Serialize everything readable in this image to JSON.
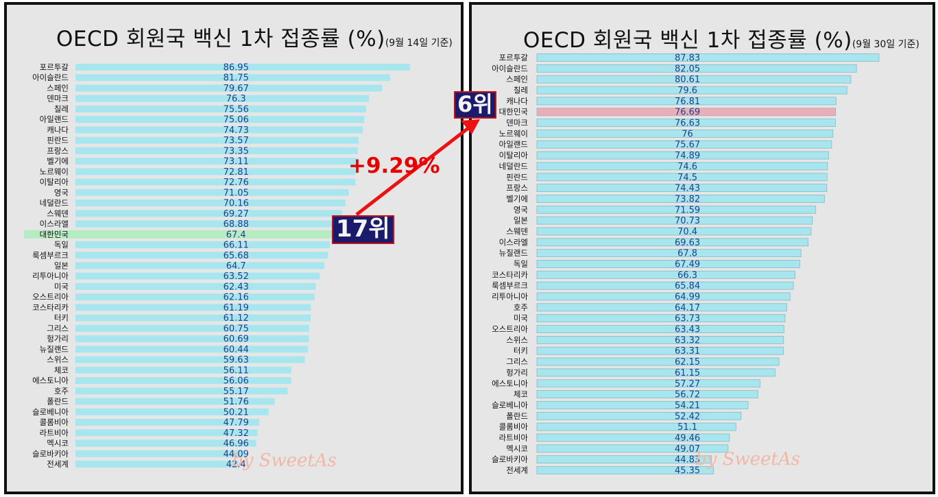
{
  "left_chart": {
    "title": "OECD 회원국 백신 1차 접종률 (%)",
    "subtitle": "(9월 14일 기준)",
    "watermark": "by SweetAs",
    "highlight_color": "#b6ecc1"
  },
  "right_chart": {
    "title": "OECD 회원국 백신 1차 접종률 (%)",
    "subtitle": "(9월 30일 기준)",
    "watermark": "by SweetAs",
    "highlight_color": "#eeadb6"
  },
  "annotations": {
    "left_rank": "17위",
    "right_rank": "6위",
    "change": "+9.29%",
    "arrow_color": "#ee1111"
  },
  "bar_color": "#a8e6ef",
  "chart_data": [
    {
      "type": "bar",
      "orientation": "horizontal",
      "title": "OECD 회원국 백신 1차 접종률 (%)",
      "subtitle": "(9월 14일 기준)",
      "highlight": "대한민국",
      "categories": [
        "포르투갈",
        "아이슬란드",
        "스페인",
        "덴마크",
        "칠레",
        "아일랜드",
        "캐나다",
        "핀란드",
        "프랑스",
        "벨기에",
        "노르웨이",
        "이탈리아",
        "영국",
        "네덜란드",
        "스웨덴",
        "이스라엘",
        "대한민국",
        "독일",
        "룩셈부르크",
        "일본",
        "리투아니아",
        "미국",
        "오스트리아",
        "코스타리카",
        "터키",
        "그리스",
        "헝가리",
        "뉴질랜드",
        "스위스",
        "체코",
        "에스토니아",
        "호주",
        "폴란드",
        "슬로베니아",
        "콜롬비아",
        "라트비아",
        "멕시코",
        "슬로바키아",
        "전세계"
      ],
      "values": [
        "86.95",
        "81.75",
        "79.67",
        "76.3",
        "75.56",
        "75.06",
        "74.73",
        "73.57",
        "73.35",
        "73.11",
        "72.81",
        "72.76",
        "71.05",
        "70.16",
        "69.27",
        "68.88",
        "67.4",
        "66.11",
        "65.68",
        "64.7",
        "63.52",
        "62.43",
        "62.16",
        "61.19",
        "61.12",
        "60.75",
        "60.69",
        "60.44",
        "59.63",
        "56.11",
        "56.06",
        "55.17",
        "51.76",
        "50.21",
        "47.79",
        "47.32",
        "46.96",
        "44.09",
        "42.4"
      ]
    },
    {
      "type": "bar",
      "orientation": "horizontal",
      "title": "OECD 회원국 백신 1차 접종률 (%)",
      "subtitle": "(9월 30일 기준)",
      "highlight": "대한민국",
      "categories": [
        "포르투갈",
        "아이슬란드",
        "스페인",
        "칠레",
        "캐나다",
        "대한민국",
        "덴마크",
        "노르웨이",
        "아일랜드",
        "이탈리아",
        "네덜란드",
        "핀란드",
        "프랑스",
        "벨기에",
        "영국",
        "일본",
        "스웨덴",
        "이스라엘",
        "뉴질랜드",
        "독일",
        "코스타리카",
        "룩셈부르크",
        "리투아니아",
        "호주",
        "미국",
        "오스트리아",
        "스위스",
        "터키",
        "그리스",
        "헝가리",
        "에스토니아",
        "체코",
        "슬로베니아",
        "폴란드",
        "콜롬비아",
        "라트비아",
        "멕시코",
        "슬로바키아",
        "전세계"
      ],
      "values": [
        "87.83",
        "82.05",
        "80.61",
        "79.6",
        "76.81",
        "76.69",
        "76.63",
        "76",
        "75.67",
        "74.89",
        "74.6",
        "74.5",
        "74.43",
        "73.82",
        "71.59",
        "70.73",
        "70.4",
        "69.63",
        "67.8",
        "67.49",
        "66.3",
        "65.84",
        "64.99",
        "64.17",
        "63.73",
        "63.43",
        "63.32",
        "63.31",
        "62.15",
        "61.15",
        "57.27",
        "56.72",
        "54.21",
        "52.42",
        "51.1",
        "49.46",
        "49.07",
        "44.83",
        "45.35"
      ]
    }
  ]
}
